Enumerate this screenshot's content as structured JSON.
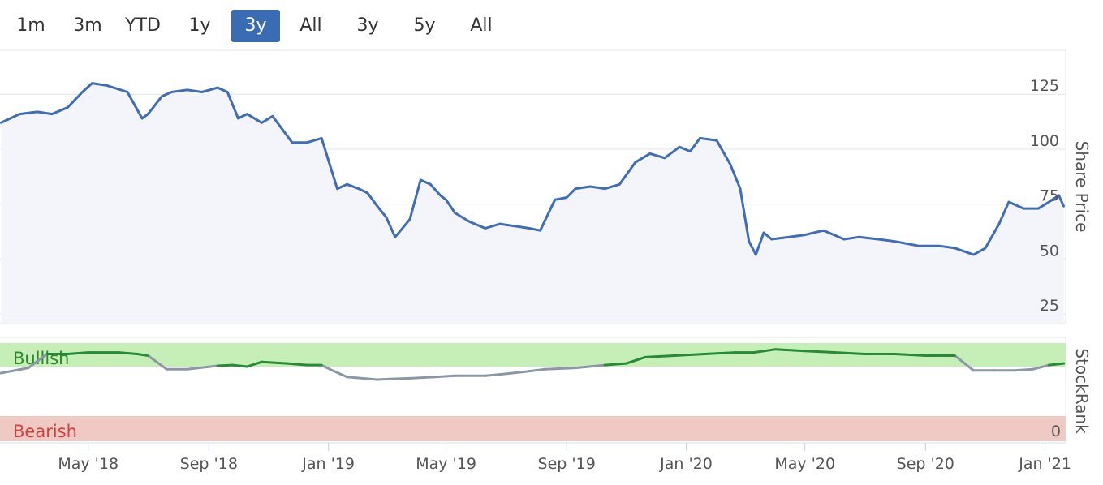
{
  "range_selector": {
    "buttons": [
      "1m",
      "3m",
      "YTD",
      "1y",
      "3y",
      "All",
      "3y",
      "5y",
      "All"
    ],
    "active_index": 4
  },
  "colors": {
    "price_line": "#3f6db5",
    "price_fill": "#f4f5fa",
    "bullish_band": "#c6efb7",
    "bearish_band": "#efc9c4",
    "bullish_text": "#2a8a2a",
    "bearish_text": "#d24040",
    "rank_green": "#268a36",
    "rank_grey": "#8b97a6",
    "active_button": "#3a6cb4"
  },
  "chart_data": [
    {
      "type": "line",
      "name": "share-price",
      "ylabel": "Share Price",
      "yticks": [
        25,
        50,
        75,
        100,
        125
      ],
      "ylim": [
        21,
        145
      ],
      "grid": true,
      "x": [
        "2018-02-01",
        "2018-02-20",
        "2018-03-10",
        "2018-03-25",
        "2018-04-10",
        "2018-04-25",
        "2018-05-05",
        "2018-05-20",
        "2018-06-10",
        "2018-06-25",
        "2018-07-01",
        "2018-07-15",
        "2018-07-25",
        "2018-08-10",
        "2018-08-25",
        "2018-09-10",
        "2018-09-20",
        "2018-10-01",
        "2018-10-10",
        "2018-10-25",
        "2018-11-05",
        "2018-11-15",
        "2018-11-25",
        "2018-12-10",
        "2018-12-25",
        "2019-01-03",
        "2019-01-10",
        "2019-01-20",
        "2019-02-01",
        "2019-02-10",
        "2019-02-20",
        "2019-03-01",
        "2019-03-10",
        "2019-03-25",
        "2019-04-05",
        "2019-04-15",
        "2019-04-25",
        "2019-05-01",
        "2019-05-10",
        "2019-05-25",
        "2019-06-10",
        "2019-06-25",
        "2019-07-10",
        "2019-07-25",
        "2019-08-05",
        "2019-08-20",
        "2019-09-01",
        "2019-09-10",
        "2019-09-25",
        "2019-10-10",
        "2019-10-25",
        "2019-11-10",
        "2019-11-25",
        "2019-12-10",
        "2019-12-25",
        "2020-01-05",
        "2020-01-15",
        "2020-02-01",
        "2020-02-15",
        "2020-02-25",
        "2020-03-05",
        "2020-03-12",
        "2020-03-20",
        "2020-03-28",
        "2020-04-15",
        "2020-05-01",
        "2020-05-20",
        "2020-06-10",
        "2020-06-25",
        "2020-07-15",
        "2020-08-01",
        "2020-08-25",
        "2020-09-15",
        "2020-10-01",
        "2020-10-20",
        "2020-11-01",
        "2020-11-15",
        "2020-11-25",
        "2020-12-10",
        "2020-12-25",
        "2021-01-05",
        "2021-01-15",
        "2021-01-20"
      ],
      "values": [
        112,
        116,
        117,
        116,
        119,
        126,
        130,
        129,
        126,
        114,
        116,
        124,
        126,
        127,
        126,
        128,
        126,
        114,
        116,
        112,
        115,
        109,
        103,
        103,
        105,
        92,
        82,
        84,
        82,
        80,
        74,
        69,
        60,
        68,
        86,
        84,
        79,
        77,
        71,
        67,
        64,
        66,
        65,
        64,
        63,
        77,
        78,
        82,
        83,
        82,
        84,
        94,
        98,
        96,
        101,
        99,
        105,
        104,
        93,
        82,
        58,
        52,
        62,
        59,
        60,
        61,
        63,
        59,
        60,
        59,
        58,
        56,
        56,
        55,
        52,
        55,
        66,
        76,
        73,
        73,
        76,
        79,
        74
      ]
    },
    {
      "type": "line",
      "name": "stockrank",
      "ylabel": "StockRank",
      "bands": [
        {
          "label": "Bullish",
          "from": 70,
          "to": 100
        },
        {
          "label": "Bearish",
          "from": 0,
          "to": 30
        }
      ],
      "ytick_label": "0",
      "x": [
        "2018-02-01",
        "2018-03-01",
        "2018-03-20",
        "2018-04-10",
        "2018-05-01",
        "2018-06-01",
        "2018-06-20",
        "2018-07-01",
        "2018-07-20",
        "2018-08-10",
        "2018-09-10",
        "2018-09-25",
        "2018-10-10",
        "2018-10-25",
        "2018-11-20",
        "2018-12-10",
        "2018-12-25",
        "2019-01-05",
        "2019-01-20",
        "2019-02-20",
        "2019-03-05",
        "2019-03-25",
        "2019-04-20",
        "2019-05-10",
        "2019-06-10",
        "2019-06-25",
        "2019-07-20",
        "2019-08-10",
        "2019-09-10",
        "2019-10-10",
        "2019-11-01",
        "2019-11-20",
        "2019-12-20",
        "2020-01-20",
        "2020-02-20",
        "2020-03-10",
        "2020-04-01",
        "2020-05-01",
        "2020-06-01",
        "2020-07-01",
        "2020-08-01",
        "2020-09-01",
        "2020-10-01",
        "2020-10-20",
        "2020-11-10",
        "2020-12-01",
        "2020-12-20",
        "2021-01-05",
        "2021-01-20"
      ],
      "values": [
        60,
        68,
        86,
        86,
        88,
        88,
        86,
        84,
        66,
        66,
        71,
        72,
        70,
        76,
        74,
        72,
        72,
        64,
        54,
        50,
        51,
        52,
        54,
        56,
        56,
        58,
        62,
        66,
        68,
        72,
        74,
        82,
        84,
        86,
        88,
        88,
        92,
        90,
        88,
        86,
        86,
        84,
        84,
        64,
        64,
        64,
        66,
        72,
        74
      ],
      "colors_note": "green when >= 70, grey otherwise"
    }
  ],
  "xaxis": {
    "ticks": [
      "May '18",
      "Sep '18",
      "Jan '19",
      "May '19",
      "Sep '19",
      "Jan '20",
      "May '20",
      "Sep '20",
      "Jan '21"
    ],
    "tick_dates": [
      "2018-05-01",
      "2018-09-01",
      "2019-01-01",
      "2019-05-01",
      "2019-09-01",
      "2020-01-01",
      "2020-05-01",
      "2020-09-01",
      "2021-01-01"
    ]
  }
}
